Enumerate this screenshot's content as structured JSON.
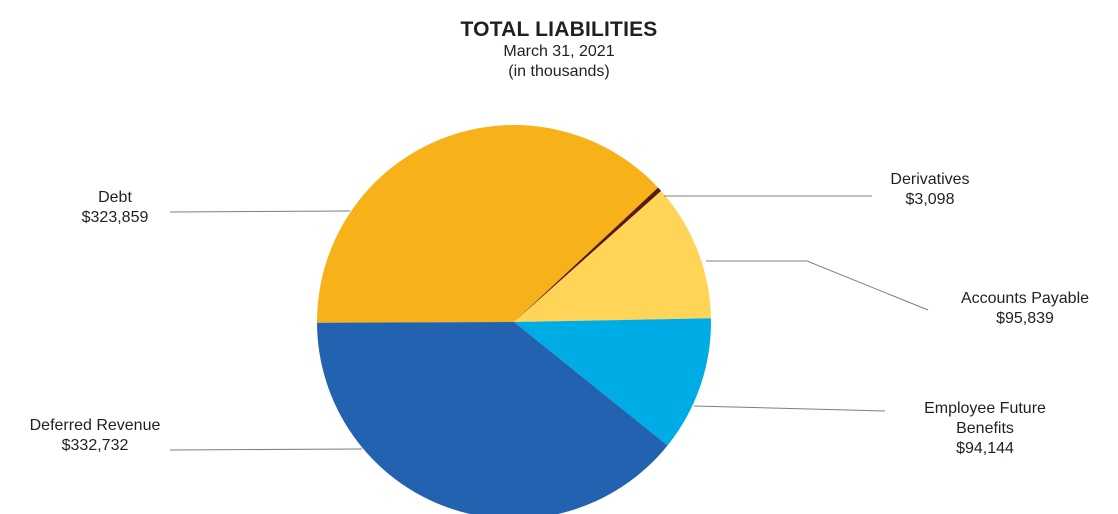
{
  "chart_data": {
    "type": "pie",
    "title": "TOTAL LIABILITIES",
    "subtitle": "March 31, 2021",
    "unit_note": "(in thousands)",
    "slices": [
      {
        "name": "Debt",
        "value": 323859,
        "value_label": "$323,859",
        "color": "#f8b219"
      },
      {
        "name": "Derivatives",
        "value": 3098,
        "value_label": "$3,098",
        "color": "#5a1a14"
      },
      {
        "name": "Accounts Payable",
        "value": 95839,
        "value_label": "$95,839",
        "color": "#ffd457"
      },
      {
        "name": "Employee Future Benefits",
        "value": 94144,
        "value_label": "$94,144",
        "color": "#00ace6"
      },
      {
        "name": "Deferred Revenue",
        "value": 332732,
        "value_label": "$332,732",
        "color": "#2362b0"
      }
    ]
  }
}
